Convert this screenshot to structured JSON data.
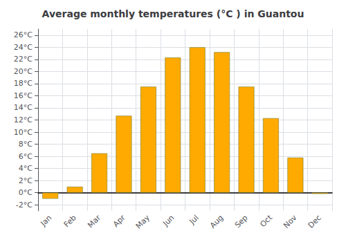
{
  "chart_data": {
    "type": "bar",
    "title": "Average monthly temperatures (°C ) in Guantou",
    "categories": [
      "Jan",
      "Feb",
      "Mar",
      "Apr",
      "May",
      "Jun",
      "Jul",
      "Aug",
      "Sep",
      "Oct",
      "Nov",
      "Dec"
    ],
    "values": [
      -1.0,
      1.0,
      6.5,
      12.7,
      17.5,
      22.3,
      24.0,
      23.2,
      17.5,
      12.3,
      5.8,
      -0.2
    ],
    "color": "#FFAA00",
    "ylim": [
      -3,
      27
    ],
    "yticks": [
      {
        "value": -2,
        "label": "-2°C"
      },
      {
        "value": 0,
        "label": "0°C"
      },
      {
        "value": 2,
        "label": "2°C"
      },
      {
        "value": 4,
        "label": "4°C"
      },
      {
        "value": 6,
        "label": "6°C"
      },
      {
        "value": 8,
        "label": "8°C"
      },
      {
        "value": 10,
        "label": "10°C"
      },
      {
        "value": 12,
        "label": "12°C"
      },
      {
        "value": 14,
        "label": "14°C"
      },
      {
        "value": 16,
        "label": "16°C"
      },
      {
        "value": 18,
        "label": "18°C"
      },
      {
        "value": 20,
        "label": "20°C"
      },
      {
        "value": 22,
        "label": "22°C"
      },
      {
        "value": 24,
        "label": "24°C"
      },
      {
        "value": 26,
        "label": "26°C"
      }
    ],
    "grid": true
  }
}
